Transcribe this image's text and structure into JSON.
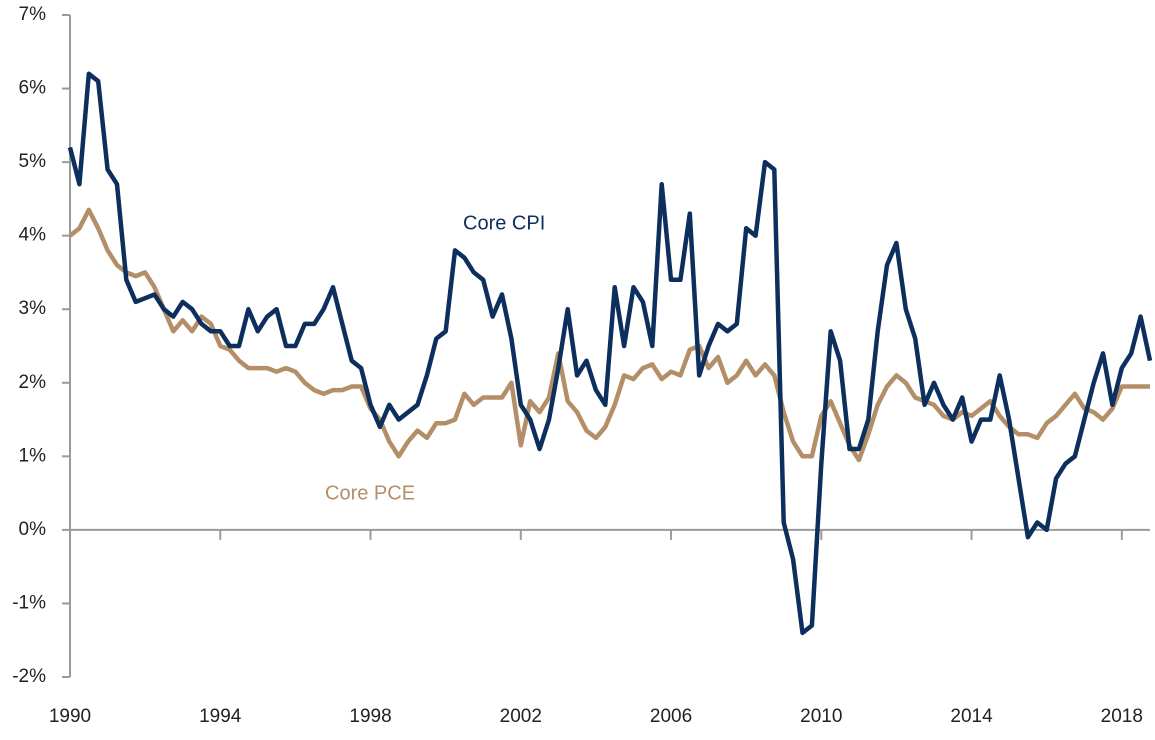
{
  "chart_data": {
    "type": "line",
    "x": [
      1990,
      1990.25,
      1990.5,
      1990.75,
      1991,
      1991.25,
      1991.5,
      1991.75,
      1992,
      1992.25,
      1992.5,
      1992.75,
      1993,
      1993.25,
      1993.5,
      1993.75,
      1994,
      1994.25,
      1994.5,
      1994.75,
      1995,
      1995.25,
      1995.5,
      1995.75,
      1996,
      1996.25,
      1996.5,
      1996.75,
      1997,
      1997.25,
      1997.5,
      1997.75,
      1998,
      1998.25,
      1998.5,
      1998.75,
      1999,
      1999.25,
      1999.5,
      1999.75,
      2000,
      2000.25,
      2000.5,
      2000.75,
      2001,
      2001.25,
      2001.5,
      2001.75,
      2002,
      2002.25,
      2002.5,
      2002.75,
      2003,
      2003.25,
      2003.5,
      2003.75,
      2004,
      2004.25,
      2004.5,
      2004.75,
      2005,
      2005.25,
      2005.5,
      2005.75,
      2006,
      2006.25,
      2006.5,
      2006.75,
      2007,
      2007.25,
      2007.5,
      2007.75,
      2008,
      2008.25,
      2008.5,
      2008.75,
      2009,
      2009.25,
      2009.5,
      2009.75,
      2010,
      2010.25,
      2010.5,
      2010.75,
      2011,
      2011.25,
      2011.5,
      2011.75,
      2012,
      2012.25,
      2012.5,
      2012.75,
      2013,
      2013.25,
      2013.5,
      2013.75,
      2014,
      2014.25,
      2014.5,
      2014.75,
      2015,
      2015.25,
      2015.5,
      2015.75,
      2016,
      2016.25,
      2016.5,
      2016.75,
      2017,
      2017.25,
      2017.5,
      2017.75,
      2018,
      2018.25,
      2018.5,
      2018.75
    ],
    "series": [
      {
        "name": "Core CPI",
        "color": "#0d2f5e",
        "values": [
          5.2,
          4.7,
          6.2,
          6.1,
          4.9,
          4.7,
          3.4,
          3.1,
          3.15,
          3.2,
          3.0,
          2.9,
          3.1,
          3.0,
          2.8,
          2.7,
          2.7,
          2.5,
          2.5,
          3.0,
          2.7,
          2.9,
          3.0,
          2.5,
          2.5,
          2.8,
          2.8,
          3.0,
          3.3,
          2.8,
          2.3,
          2.2,
          1.7,
          1.4,
          1.7,
          1.5,
          1.6,
          1.7,
          2.1,
          2.6,
          2.7,
          3.8,
          3.7,
          3.5,
          3.4,
          2.9,
          3.2,
          2.6,
          1.7,
          1.5,
          1.1,
          1.5,
          2.2,
          3.0,
          2.1,
          2.3,
          1.9,
          1.7,
          3.3,
          2.5,
          3.3,
          3.1,
          2.5,
          4.7,
          3.4,
          3.4,
          4.3,
          2.1,
          2.5,
          2.8,
          2.7,
          2.8,
          4.1,
          4.0,
          5.0,
          4.9,
          0.1,
          -0.4,
          -1.4,
          -1.3,
          0.9,
          2.7,
          2.3,
          1.1,
          1.1,
          1.5,
          2.7,
          3.6,
          3.9,
          3.0,
          2.6,
          1.7,
          2.0,
          1.7,
          1.5,
          1.8,
          1.2,
          1.5,
          1.5,
          2.1,
          1.5,
          0.7,
          -0.1,
          0.1,
          0.0,
          0.7,
          0.9,
          1.0,
          1.5,
          2.0,
          2.4,
          1.7,
          2.2,
          2.4,
          2.9,
          2.3
        ]
      },
      {
        "name": "Core PCE",
        "color": "#b38e67",
        "values": [
          4.0,
          4.1,
          4.35,
          4.1,
          3.8,
          3.6,
          3.5,
          3.45,
          3.5,
          3.3,
          3.0,
          2.7,
          2.85,
          2.7,
          2.9,
          2.8,
          2.5,
          2.45,
          2.3,
          2.2,
          2.2,
          2.2,
          2.15,
          2.2,
          2.15,
          2.0,
          1.9,
          1.85,
          1.9,
          1.9,
          1.95,
          1.95,
          1.65,
          1.5,
          1.2,
          1.0,
          1.2,
          1.35,
          1.25,
          1.45,
          1.45,
          1.5,
          1.85,
          1.7,
          1.8,
          1.8,
          1.8,
          2.0,
          1.15,
          1.75,
          1.6,
          1.8,
          2.4,
          1.75,
          1.6,
          1.35,
          1.25,
          1.4,
          1.7,
          2.1,
          2.05,
          2.2,
          2.25,
          2.05,
          2.15,
          2.1,
          2.45,
          2.5,
          2.2,
          2.35,
          2.0,
          2.1,
          2.3,
          2.1,
          2.25,
          2.1,
          1.6,
          1.2,
          1.0,
          1.0,
          1.55,
          1.75,
          1.45,
          1.15,
          0.95,
          1.3,
          1.7,
          1.95,
          2.1,
          2.0,
          1.8,
          1.75,
          1.7,
          1.55,
          1.5,
          1.6,
          1.55,
          1.65,
          1.75,
          1.55,
          1.4,
          1.3,
          1.3,
          1.25,
          1.45,
          1.55,
          1.7,
          1.85,
          1.65,
          1.6,
          1.5,
          1.65,
          1.95,
          1.95,
          1.95,
          1.95
        ]
      }
    ],
    "xlim": [
      1990,
      2018.75
    ],
    "xticks": [
      1990,
      1994,
      1998,
      2002,
      2006,
      2010,
      2014,
      2018
    ],
    "ylim": [
      -2,
      7
    ],
    "yticks": [
      {
        "value": -2,
        "label": "-2%"
      },
      {
        "value": -1,
        "label": "-1%"
      },
      {
        "value": 0,
        "label": "0%"
      },
      {
        "value": 1,
        "label": "1%"
      },
      {
        "value": 2,
        "label": "2%"
      },
      {
        "value": 3,
        "label": "3%"
      },
      {
        "value": 4,
        "label": "4%"
      },
      {
        "value": 5,
        "label": "5%"
      },
      {
        "value": 6,
        "label": "6%"
      },
      {
        "value": 7,
        "label": "7%"
      }
    ],
    "grid": false
  }
}
